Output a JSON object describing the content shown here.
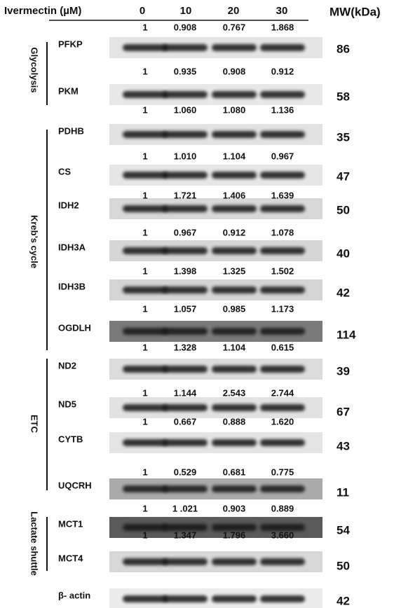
{
  "header": {
    "treatment_label": "Ivermectin (µM)",
    "doses": [
      "0",
      "10",
      "20",
      "30"
    ],
    "mw_label": "MW(kDa)"
  },
  "groups": [
    {
      "label": "Glycolysis"
    },
    {
      "label": "Kreb’s cycle"
    },
    {
      "label": "ETC"
    },
    {
      "label": "Lactate shuttle"
    }
  ],
  "blots": [
    {
      "name": "PFKP",
      "values": [
        "1",
        "0.908",
        "0.767",
        "1.868"
      ],
      "mw": "86"
    },
    {
      "name": "PKM",
      "values": [
        "1",
        "0.935",
        "0.908",
        "0.912"
      ],
      "mw": "58"
    },
    {
      "name": "PDHB",
      "values": [
        "1",
        "1.060",
        "1.080",
        "1.136"
      ],
      "mw": "35"
    },
    {
      "name": "CS",
      "values": [
        "1",
        "1.010",
        "1.104",
        "0.967"
      ],
      "mw": "47"
    },
    {
      "name": "IDH2",
      "values": [
        "1",
        "1.721",
        "1.406",
        "1.639"
      ],
      "mw": "50"
    },
    {
      "name": "IDH3A",
      "values": [
        "1",
        "0.967",
        "0.912",
        "1.078"
      ],
      "mw": "40"
    },
    {
      "name": "IDH3B",
      "values": [
        "1",
        "1.398",
        "1.325",
        "1.502"
      ],
      "mw": "42"
    },
    {
      "name": "OGDLH",
      "values": [
        "1",
        "1.057",
        "0.985",
        "1.173"
      ],
      "mw": "114"
    },
    {
      "name": "ND2",
      "values": [
        "1",
        "1.328",
        "1.104",
        "0.615"
      ],
      "mw": "39"
    },
    {
      "name": "ND5",
      "values": [
        "1",
        "1.144",
        "2.543",
        "2.744"
      ],
      "mw": "67"
    },
    {
      "name": "CYTB",
      "values": [
        "1",
        "0.667",
        "0.888",
        "1.620"
      ],
      "mw": "43"
    },
    {
      "name": "UQCRH",
      "values": [
        "1",
        "0.529",
        "0.681",
        "0.775"
      ],
      "mw": "11"
    },
    {
      "name": "MCT1",
      "values": [
        "1",
        "1 .021",
        "0.903",
        "0.889"
      ],
      "mw": "54"
    },
    {
      "name": "MCT4",
      "values": [
        "1",
        "1.347",
        "1.796",
        "3.660"
      ],
      "mw": "50"
    },
    {
      "name": "β- actin",
      "mw": "42"
    }
  ]
}
